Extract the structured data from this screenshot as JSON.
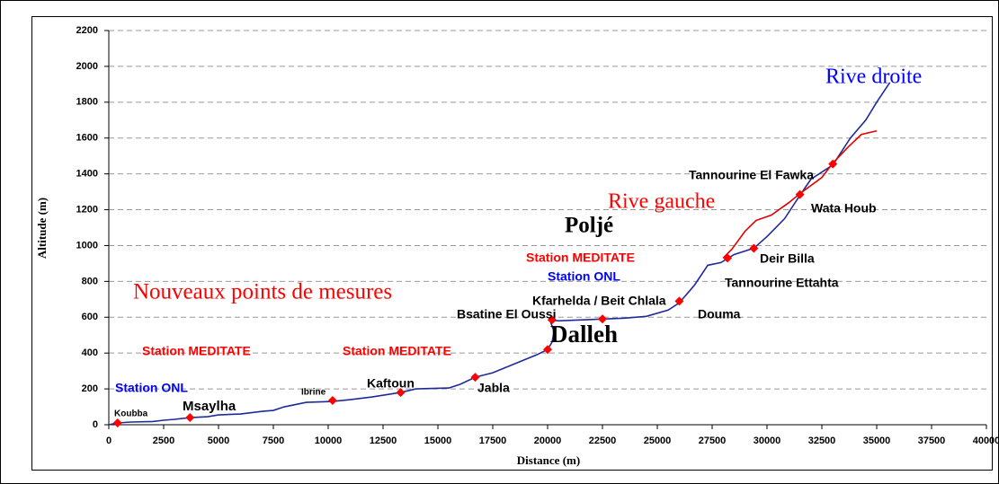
{
  "chart_data": {
    "type": "line",
    "x_label": "Distance (m)",
    "y_label": "Altitude (m)",
    "xlim": [
      0,
      40000
    ],
    "xticks": [
      0,
      2500,
      5000,
      7500,
      10000,
      12500,
      15000,
      17500,
      20000,
      22500,
      25000,
      27500,
      30000,
      32500,
      35000,
      37500,
      40000
    ],
    "ylim": [
      0,
      2200
    ],
    "yticks": [
      0,
      200,
      400,
      600,
      800,
      1000,
      1200,
      1400,
      1600,
      1800,
      2000,
      2200
    ],
    "grid": true,
    "series": [
      {
        "name": "Rive droite",
        "color": "#1f2a9a",
        "x": [
          0,
          400,
          1000,
          2000,
          2500,
          3000,
          3700,
          4500,
          5000,
          6000,
          7000,
          7500,
          8000,
          9000,
          10200,
          11000,
          12000,
          13300,
          14000,
          15500,
          16000,
          16700,
          17500,
          18500,
          19500,
          20000,
          20200,
          20300,
          20100,
          20500,
          21500,
          22500,
          23500,
          24500,
          25500,
          26000,
          26700,
          27300,
          27900,
          28500,
          29400,
          30000,
          30800,
          31500,
          32000,
          33000,
          33800,
          34500,
          35000,
          35600
        ],
        "values": [
          0,
          10,
          15,
          18,
          25,
          30,
          40,
          45,
          55,
          60,
          75,
          80,
          100,
          125,
          130,
          140,
          155,
          180,
          200,
          205,
          225,
          265,
          290,
          340,
          390,
          420,
          460,
          520,
          585,
          580,
          585,
          590,
          595,
          605,
          640,
          680,
          780,
          890,
          905,
          950,
          985,
          1050,
          1150,
          1280,
          1370,
          1450,
          1600,
          1700,
          1800,
          1910
        ]
      },
      {
        "name": "Rive gauche",
        "color": "#e00000",
        "x": [
          28000,
          28400,
          29000,
          29500,
          30200,
          31000,
          31500,
          32500,
          33000,
          33700,
          34300,
          35000
        ],
        "values": [
          930,
          980,
          1080,
          1140,
          1170,
          1240,
          1290,
          1380,
          1460,
          1550,
          1620,
          1640
        ]
      }
    ],
    "points": {
      "color": "#ff0000",
      "x": [
        400,
        3700,
        10200,
        13300,
        16700,
        20000,
        20200,
        22500,
        26000,
        28200,
        29400,
        31500,
        33000
      ],
      "values": [
        10,
        40,
        135,
        180,
        265,
        420,
        585,
        590,
        690,
        930,
        985,
        1285,
        1455
      ]
    },
    "annotations": [
      {
        "text": "Poljé",
        "color": "#000000"
      },
      {
        "text": "Station MEDITATE",
        "color": "#ff0000"
      },
      {
        "text": "Station ONL",
        "color": "#0000ff"
      },
      {
        "text": "Nouveaux points de mesures",
        "color": "#ff0000"
      },
      {
        "text": "Kfarhelda / Beit Chlala",
        "color": "#000000"
      },
      {
        "text": "Bsatine El Oussi",
        "color": "#000000"
      },
      {
        "text": "Douma",
        "color": "#000000"
      },
      {
        "text": "Dalleh",
        "color": "#000000"
      },
      {
        "text": "Station MEDITATE",
        "color": "#ff0000"
      },
      {
        "text": "Station MEDITATE",
        "color": "#ff0000"
      },
      {
        "text": "Tannourine El Fawka",
        "color": "#000000"
      },
      {
        "text": "Wata Houb",
        "color": "#000000"
      },
      {
        "text": "Deir Billa",
        "color": "#000000"
      },
      {
        "text": "Tannourine Ettahta",
        "color": "#000000"
      },
      {
        "text": "Kaftoun",
        "color": "#000000"
      },
      {
        "text": "Jabla",
        "color": "#000000"
      },
      {
        "text": "Station ONL",
        "color": "#0000ff"
      },
      {
        "text": "Ibrine",
        "color": "#000000"
      },
      {
        "text": "Msaylha",
        "color": "#000000"
      },
      {
        "text": "Koubba",
        "color": "#000000"
      }
    ]
  }
}
